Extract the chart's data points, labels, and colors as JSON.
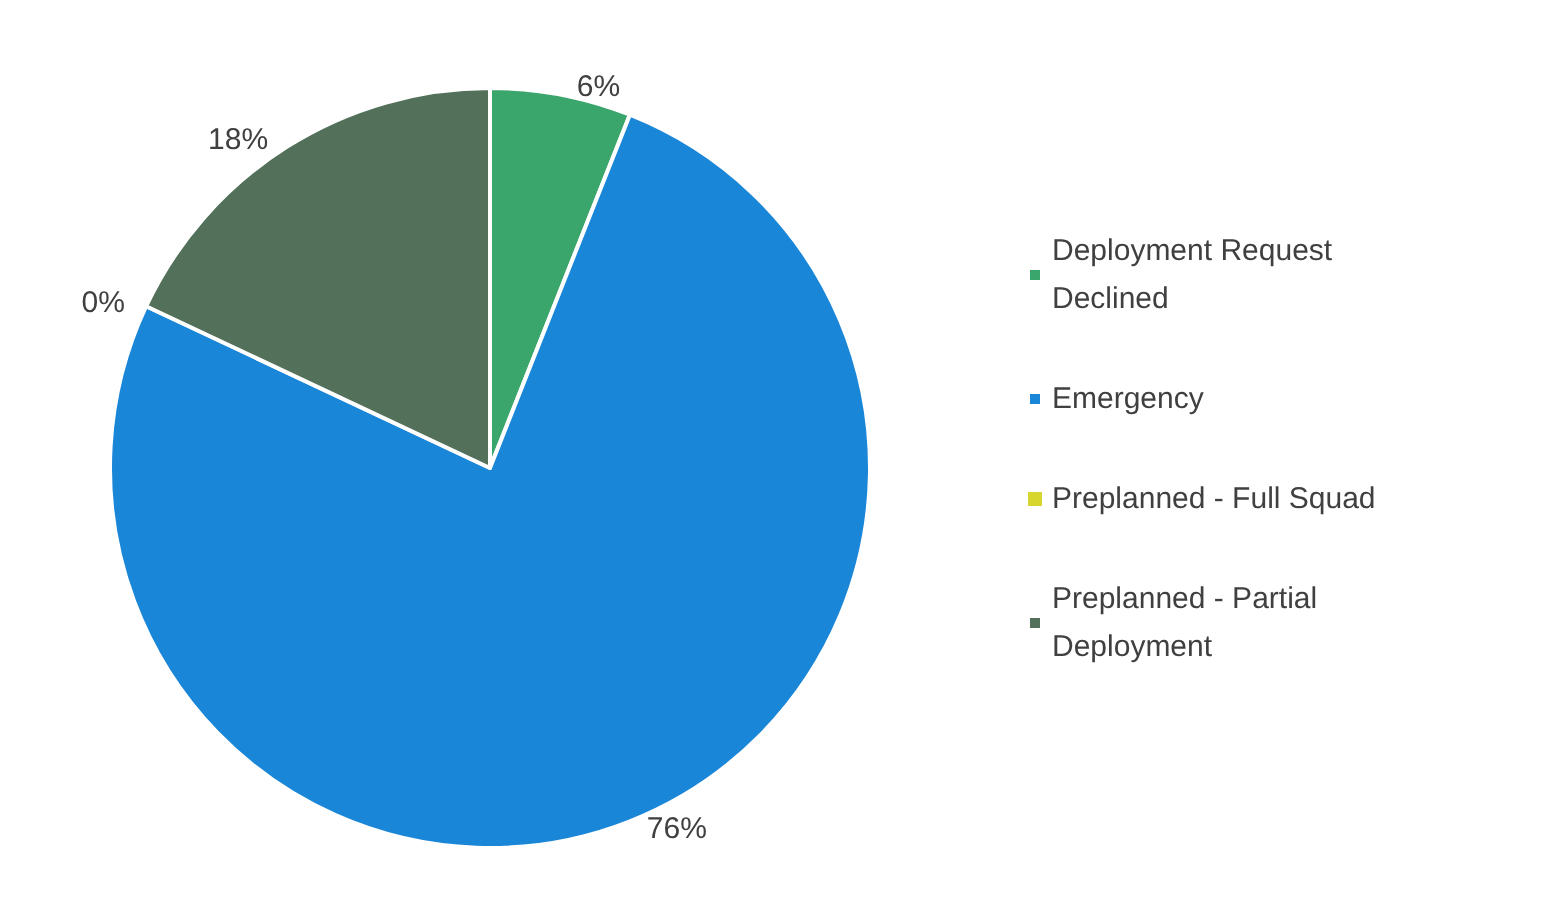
{
  "chart_data": {
    "type": "pie",
    "categories": [
      "Deployment Request Declined",
      "Emergency",
      "Preplanned - Full Squad",
      "Preplanned - Partial Deployment"
    ],
    "values": [
      6,
      76,
      0,
      18
    ],
    "value_labels": [
      "6%",
      "76%",
      "0%",
      "18%"
    ],
    "colors": [
      "#3ba66b",
      "#1a86d8",
      "#d6d62e",
      "#52705a"
    ],
    "legend": "right"
  }
}
